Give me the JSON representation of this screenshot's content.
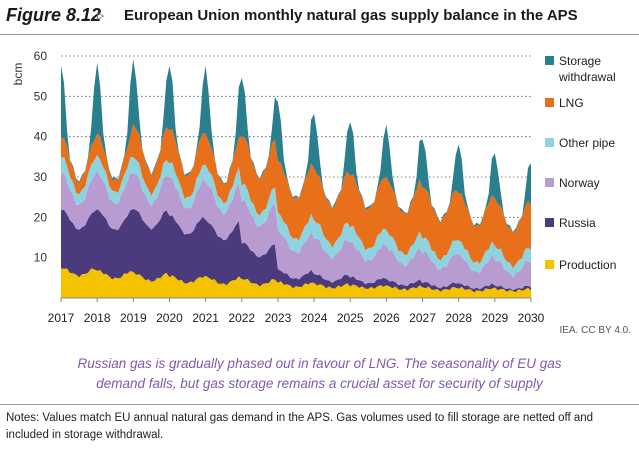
{
  "figure": {
    "label": "Figure 8.12",
    "arrow": "▹",
    "title": "European Union monthly natural gas supply balance in the APS"
  },
  "credit": "IEA. CC BY 4.0.",
  "takeaway": {
    "line1": "Russian gas is gradually phased out in favour of LNG. The seasonality of EU gas",
    "line2": "demand falls, but gas storage remains a crucial asset for security of supply"
  },
  "notes": "Notes: Values match EU annual natural gas demand in the APS. Gas volumes used to fill storage are netted off and included in storage withdrawal.",
  "chart_data": {
    "type": "area",
    "stacked": true,
    "ylabel": "bcm",
    "ylim": [
      0,
      60
    ],
    "yticks": [
      10,
      20,
      30,
      40,
      50,
      60
    ],
    "grid": "horizontal-dotted",
    "legend_position": "right",
    "xlim": [
      "2017-01",
      "2030-01"
    ],
    "xticks": [
      "2017",
      "2018",
      "2019",
      "2020",
      "2021",
      "2022",
      "2023",
      "2024",
      "2025",
      "2026",
      "2027",
      "2028",
      "2029",
      "2030"
    ],
    "series": [
      {
        "name": "Production",
        "color": "#f5c200",
        "annual_avg": [
          6.5,
          5.8,
          5.2,
          4.6,
          4.3,
          4.0,
          3.3,
          3.0,
          2.8,
          2.5,
          2.3,
          2.1,
          2.0,
          1.9
        ],
        "winter_peak": [
          7.5,
          6.8,
          6.2,
          5.5,
          5.2,
          4.8,
          3.9,
          3.5,
          3.2,
          2.9,
          2.7,
          2.5,
          2.3,
          2.2
        ]
      },
      {
        "name": "Russia",
        "color": "#4b3a7c",
        "annual_avg": [
          13.0,
          13.5,
          14.5,
          13.5,
          12.5,
          8.0,
          2.5,
          2.0,
          1.6,
          1.3,
          1.0,
          0.8,
          0.6,
          0.5
        ],
        "winter_peak": [
          14.5,
          15.0,
          16.0,
          15.0,
          14.0,
          9.0,
          3.0,
          2.5,
          2.0,
          1.6,
          1.3,
          1.0,
          0.8,
          0.7
        ]
      },
      {
        "name": "Norway",
        "color": "#b79bd1",
        "annual_avg": [
          7.5,
          7.8,
          7.5,
          7.8,
          8.0,
          9.0,
          8.0,
          7.5,
          7.0,
          6.5,
          6.0,
          5.5,
          5.0,
          4.8
        ],
        "winter_peak": [
          9.0,
          9.2,
          9.0,
          9.3,
          9.5,
          10.5,
          9.5,
          9.0,
          8.5,
          8.0,
          7.5,
          7.0,
          6.5,
          6.2
        ]
      },
      {
        "name": "Other pipe",
        "color": "#8fd3df",
        "annual_avg": [
          3.5,
          3.4,
          3.3,
          3.2,
          3.3,
          3.6,
          3.8,
          3.7,
          3.5,
          3.3,
          3.1,
          2.9,
          2.8,
          2.7
        ],
        "winter_peak": [
          4.2,
          4.0,
          3.9,
          3.8,
          3.9,
          4.2,
          4.4,
          4.3,
          4.1,
          3.9,
          3.7,
          3.5,
          3.3,
          3.2
        ]
      },
      {
        "name": "LNG",
        "color": "#e8701a",
        "annual_avg": [
          4.0,
          4.2,
          6.5,
          7.0,
          6.0,
          10.5,
          11.5,
          11.0,
          11.5,
          11.5,
          11.0,
          10.5,
          10.0,
          9.5
        ],
        "winter_peak": [
          5.0,
          5.5,
          8.0,
          8.5,
          7.5,
          12.0,
          13.0,
          12.5,
          13.0,
          13.0,
          12.5,
          12.0,
          11.5,
          11.0
        ]
      },
      {
        "name": "Storage\nwithdrawal",
        "color": "#2a7f8f",
        "annual_avg": [
          4.5,
          4.2,
          3.9,
          3.8,
          4.0,
          3.6,
          3.5,
          3.4,
          3.3,
          3.2,
          3.1,
          3.0,
          2.9,
          2.8
        ],
        "winter_peak": [
          18.0,
          17.0,
          16.0,
          15.5,
          16.5,
          14.5,
          14.0,
          13.5,
          13.0,
          12.5,
          12.0,
          11.5,
          11.0,
          10.5
        ]
      }
    ]
  }
}
